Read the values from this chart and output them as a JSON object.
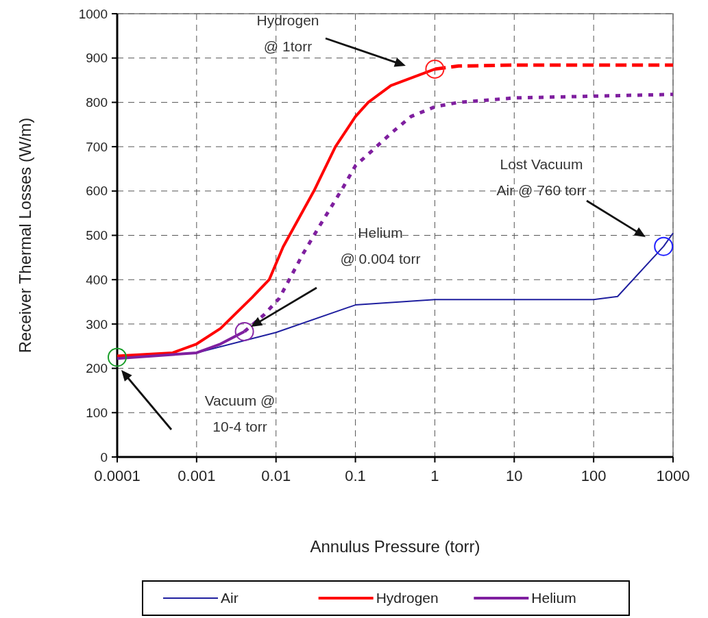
{
  "chart_data": {
    "type": "line",
    "xlabel": "Annulus Pressure (torr)",
    "ylabel": "Receiver Thermal Losses (W/m)",
    "log": "x",
    "xlim": [
      0.0001,
      1000
    ],
    "xticks": [
      0.0001,
      0.001,
      0.01,
      0.1,
      1,
      10,
      100,
      1000
    ],
    "ylim": [
      0,
      1000
    ],
    "yticks": [
      0,
      100,
      200,
      300,
      400,
      500,
      600,
      700,
      800,
      900,
      1000
    ],
    "grid": true,
    "legend": "bottom",
    "series": [
      {
        "name": "Air",
        "color": "#1f1f9f",
        "line_style": "solid",
        "x": [
          0.0001,
          0.001,
          0.01,
          0.1,
          1,
          100,
          200,
          760,
          1000
        ],
        "values": [
          225,
          235,
          281,
          343,
          355,
          355,
          362,
          475,
          505
        ]
      },
      {
        "name": "Hydrogen",
        "color": "#ff0000",
        "line_style": "solid",
        "x": [
          0.0001,
          0.0005,
          0.001,
          0.002,
          0.005,
          0.0082,
          0.0123,
          0.03,
          0.056,
          0.1,
          0.145,
          0.28,
          1
        ],
        "values": [
          228,
          235,
          255,
          290,
          360,
          400,
          474,
          600,
          700,
          768,
          800,
          838,
          875
        ]
      },
      {
        "color": "#ff0000",
        "line_style": "dashed",
        "x": [
          1,
          2,
          10,
          1000
        ],
        "values": [
          875,
          882,
          884,
          884
        ]
      },
      {
        "name": "Helium",
        "color": "#7f1f9f",
        "line_style": "solid",
        "x": [
          0.0001,
          0.001,
          0.002,
          0.004
        ],
        "values": [
          222,
          235,
          255,
          283
        ]
      },
      {
        "color": "#7f1f9f",
        "line_style": "dotted",
        "x": [
          0.004,
          0.007,
          0.011,
          0.0155,
          0.022,
          0.035,
          0.048,
          0.071,
          0.1,
          0.16,
          0.28,
          0.5,
          1,
          2,
          10,
          1000
        ],
        "values": [
          283,
          320,
          358,
          408,
          459,
          520,
          560,
          610,
          657,
          690,
          730,
          768,
          790,
          800,
          810,
          818
        ]
      },
      {
        "type": "scatter",
        "marker": "circle",
        "x": [
          1,
          0.004,
          0.0001,
          760
        ],
        "values": [
          875,
          283,
          225,
          475
        ],
        "colors": [
          "#ff2020",
          "#8a2aa8",
          "#1a9e2a",
          "#2020ff"
        ]
      }
    ],
    "annotations": [
      "Hydrogen\n@ 1torr",
      "Helium\n@ 0.004 torr",
      "Vacuum @\n10-4 torr",
      "Lost Vacuum\nAir @ 760 torr"
    ]
  }
}
